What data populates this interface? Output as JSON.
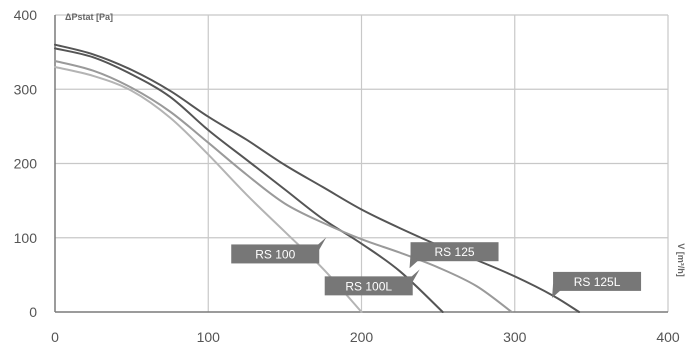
{
  "chart_data": {
    "type": "line",
    "ylabel": "ΔPstat [Pa]",
    "xlabel": "V [m³/h]",
    "xlim": [
      0,
      400
    ],
    "ylim": [
      0,
      400
    ],
    "x_ticks": [
      0,
      100,
      200,
      300,
      400
    ],
    "y_ticks": [
      0,
      100,
      200,
      300,
      400
    ],
    "grid": true,
    "series": [
      {
        "name": "RS 100",
        "color": "#b4b4b4",
        "points": [
          [
            0,
            330
          ],
          [
            25,
            318
          ],
          [
            50,
            298
          ],
          [
            75,
            262
          ],
          [
            100,
            212
          ],
          [
            125,
            158
          ],
          [
            150,
            108
          ],
          [
            175,
            58
          ],
          [
            200,
            0
          ]
        ]
      },
      {
        "name": "RS 100L",
        "color": "#555555",
        "points": [
          [
            0,
            355
          ],
          [
            25,
            343
          ],
          [
            50,
            320
          ],
          [
            75,
            290
          ],
          [
            100,
            245
          ],
          [
            125,
            205
          ],
          [
            150,
            165
          ],
          [
            175,
            125
          ],
          [
            200,
            92
          ],
          [
            225,
            55
          ],
          [
            253,
            0
          ]
        ]
      },
      {
        "name": "RS 125",
        "color": "#9a9a9a",
        "points": [
          [
            0,
            338
          ],
          [
            25,
            325
          ],
          [
            50,
            302
          ],
          [
            75,
            270
          ],
          [
            100,
            228
          ],
          [
            125,
            185
          ],
          [
            150,
            146
          ],
          [
            175,
            120
          ],
          [
            200,
            98
          ],
          [
            225,
            80
          ],
          [
            250,
            60
          ],
          [
            275,
            35
          ],
          [
            298,
            0
          ]
        ]
      },
      {
        "name": "RS 125L",
        "color": "#555555",
        "points": [
          [
            0,
            360
          ],
          [
            25,
            347
          ],
          [
            50,
            326
          ],
          [
            75,
            298
          ],
          [
            100,
            263
          ],
          [
            125,
            232
          ],
          [
            150,
            198
          ],
          [
            175,
            168
          ],
          [
            200,
            138
          ],
          [
            225,
            113
          ],
          [
            250,
            90
          ],
          [
            275,
            70
          ],
          [
            300,
            48
          ],
          [
            325,
            22
          ],
          [
            342,
            0
          ]
        ]
      }
    ]
  },
  "annotations": [
    {
      "label": "RS 100",
      "series": "RS 100",
      "x": 115,
      "y": 91,
      "pointer": "right"
    },
    {
      "label": "RS 100L",
      "series": "RS 100L",
      "x": 176,
      "y": 48,
      "pointer": "right"
    },
    {
      "label": "RS 125",
      "series": "RS 125",
      "x": 232,
      "y": 94,
      "pointer": "left"
    },
    {
      "label": "RS 125L",
      "series": "RS 125L",
      "x": 325,
      "y": 54,
      "pointer": "left"
    }
  ]
}
